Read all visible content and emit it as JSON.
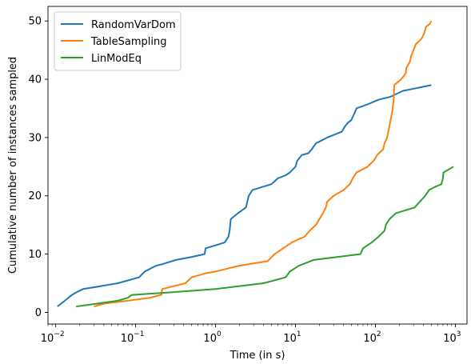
{
  "chart_data": {
    "type": "line",
    "xlabel": "Time (in s)",
    "ylabel": "Cumulative number of instances sampled",
    "x_scale": "log",
    "xlim": [
      0.008,
      1400
    ],
    "ylim": [
      -2,
      52.5
    ],
    "x_ticks": [
      {
        "value": 0.01,
        "base": "10",
        "exp": "−2"
      },
      {
        "value": 0.1,
        "base": "10",
        "exp": "−1"
      },
      {
        "value": 1,
        "base": "10",
        "exp": "0"
      },
      {
        "value": 10,
        "base": "10",
        "exp": "1"
      },
      {
        "value": 100,
        "base": "10",
        "exp": "2"
      },
      {
        "value": 1000,
        "base": "10",
        "exp": "3"
      }
    ],
    "y_ticks": [
      "0",
      "10",
      "20",
      "30",
      "40",
      "50"
    ],
    "grid": false,
    "legend_position": "top-left",
    "series": [
      {
        "name": "RandomVarDom",
        "color": "#1f77b4",
        "points": [
          [
            0.0105,
            1
          ],
          [
            0.013,
            2
          ],
          [
            0.016,
            3
          ],
          [
            0.0185,
            3.5
          ],
          [
            0.022,
            4
          ],
          [
            0.03,
            4.3
          ],
          [
            0.06,
            5
          ],
          [
            0.11,
            6
          ],
          [
            0.13,
            7
          ],
          [
            0.18,
            8
          ],
          [
            0.22,
            8.3
          ],
          [
            0.32,
            9
          ],
          [
            0.5,
            9.5
          ],
          [
            0.73,
            10
          ],
          [
            0.75,
            11
          ],
          [
            1.0,
            11.5
          ],
          [
            1.3,
            12
          ],
          [
            1.45,
            13
          ],
          [
            1.5,
            14
          ],
          [
            1.55,
            16
          ],
          [
            1.9,
            17
          ],
          [
            2.4,
            18
          ],
          [
            2.6,
            20
          ],
          [
            2.9,
            21
          ],
          [
            5.0,
            22
          ],
          [
            5.5,
            22.5
          ],
          [
            6.0,
            23
          ],
          [
            7.5,
            23.5
          ],
          [
            8.5,
            24
          ],
          [
            10,
            25
          ],
          [
            10.5,
            26
          ],
          [
            12,
            27
          ],
          [
            14.5,
            27.3
          ],
          [
            16,
            28
          ],
          [
            18,
            29
          ],
          [
            25,
            30
          ],
          [
            38,
            31
          ],
          [
            42,
            32
          ],
          [
            45,
            32.5
          ],
          [
            50,
            33
          ],
          [
            54,
            34
          ],
          [
            58,
            35
          ],
          [
            80,
            35.7
          ],
          [
            110,
            36.5
          ],
          [
            155,
            37
          ],
          [
            220,
            38
          ],
          [
            500,
            39
          ]
        ]
      },
      {
        "name": "TableSampling",
        "color": "#ff7f0e",
        "points": [
          [
            0.03,
            1
          ],
          [
            0.04,
            1.5
          ],
          [
            0.08,
            2
          ],
          [
            0.15,
            2.5
          ],
          [
            0.21,
            3
          ],
          [
            0.215,
            4
          ],
          [
            0.42,
            5
          ],
          [
            0.5,
            6
          ],
          [
            0.75,
            6.7
          ],
          [
            1.0,
            7
          ],
          [
            1.5,
            7.6
          ],
          [
            2.0,
            8
          ],
          [
            4.5,
            8.8
          ],
          [
            5.5,
            10
          ],
          [
            9.0,
            12
          ],
          [
            13,
            13
          ],
          [
            15,
            14
          ],
          [
            18,
            15
          ],
          [
            22,
            17
          ],
          [
            24,
            18
          ],
          [
            25,
            19
          ],
          [
            30,
            20
          ],
          [
            40,
            21
          ],
          [
            48,
            22
          ],
          [
            52,
            23
          ],
          [
            58,
            24
          ],
          [
            80,
            25
          ],
          [
            95,
            26
          ],
          [
            105,
            27
          ],
          [
            125,
            28
          ],
          [
            130,
            29
          ],
          [
            140,
            30
          ],
          [
            150,
            32
          ],
          [
            160,
            34
          ],
          [
            165,
            35
          ],
          [
            170,
            37
          ],
          [
            172,
            39
          ],
          [
            210,
            40
          ],
          [
            240,
            41
          ],
          [
            245,
            42
          ],
          [
            270,
            43
          ],
          [
            280,
            44
          ],
          [
            300,
            45
          ],
          [
            320,
            46
          ],
          [
            380,
            47
          ],
          [
            410,
            48
          ],
          [
            430,
            49
          ],
          [
            480,
            49.5
          ],
          [
            500,
            50
          ]
        ]
      },
      {
        "name": "LinModEq",
        "color": "#2ca02c",
        "points": [
          [
            0.018,
            1
          ],
          [
            0.06,
            2
          ],
          [
            0.08,
            2.5
          ],
          [
            0.09,
            3
          ],
          [
            0.2,
            3.3
          ],
          [
            1.0,
            4
          ],
          [
            4.0,
            5
          ],
          [
            7.5,
            6
          ],
          [
            8.0,
            6.5
          ],
          [
            8.5,
            7
          ],
          [
            11,
            8
          ],
          [
            17,
            9
          ],
          [
            65,
            10
          ],
          [
            70,
            11
          ],
          [
            90,
            12
          ],
          [
            110,
            13
          ],
          [
            130,
            14
          ],
          [
            135,
            15
          ],
          [
            150,
            16
          ],
          [
            180,
            17
          ],
          [
            310,
            18
          ],
          [
            360,
            19
          ],
          [
            420,
            20
          ],
          [
            470,
            21
          ],
          [
            550,
            21.5
          ],
          [
            670,
            22
          ],
          [
            700,
            23
          ],
          [
            710,
            24
          ],
          [
            950,
            25
          ]
        ]
      }
    ]
  }
}
